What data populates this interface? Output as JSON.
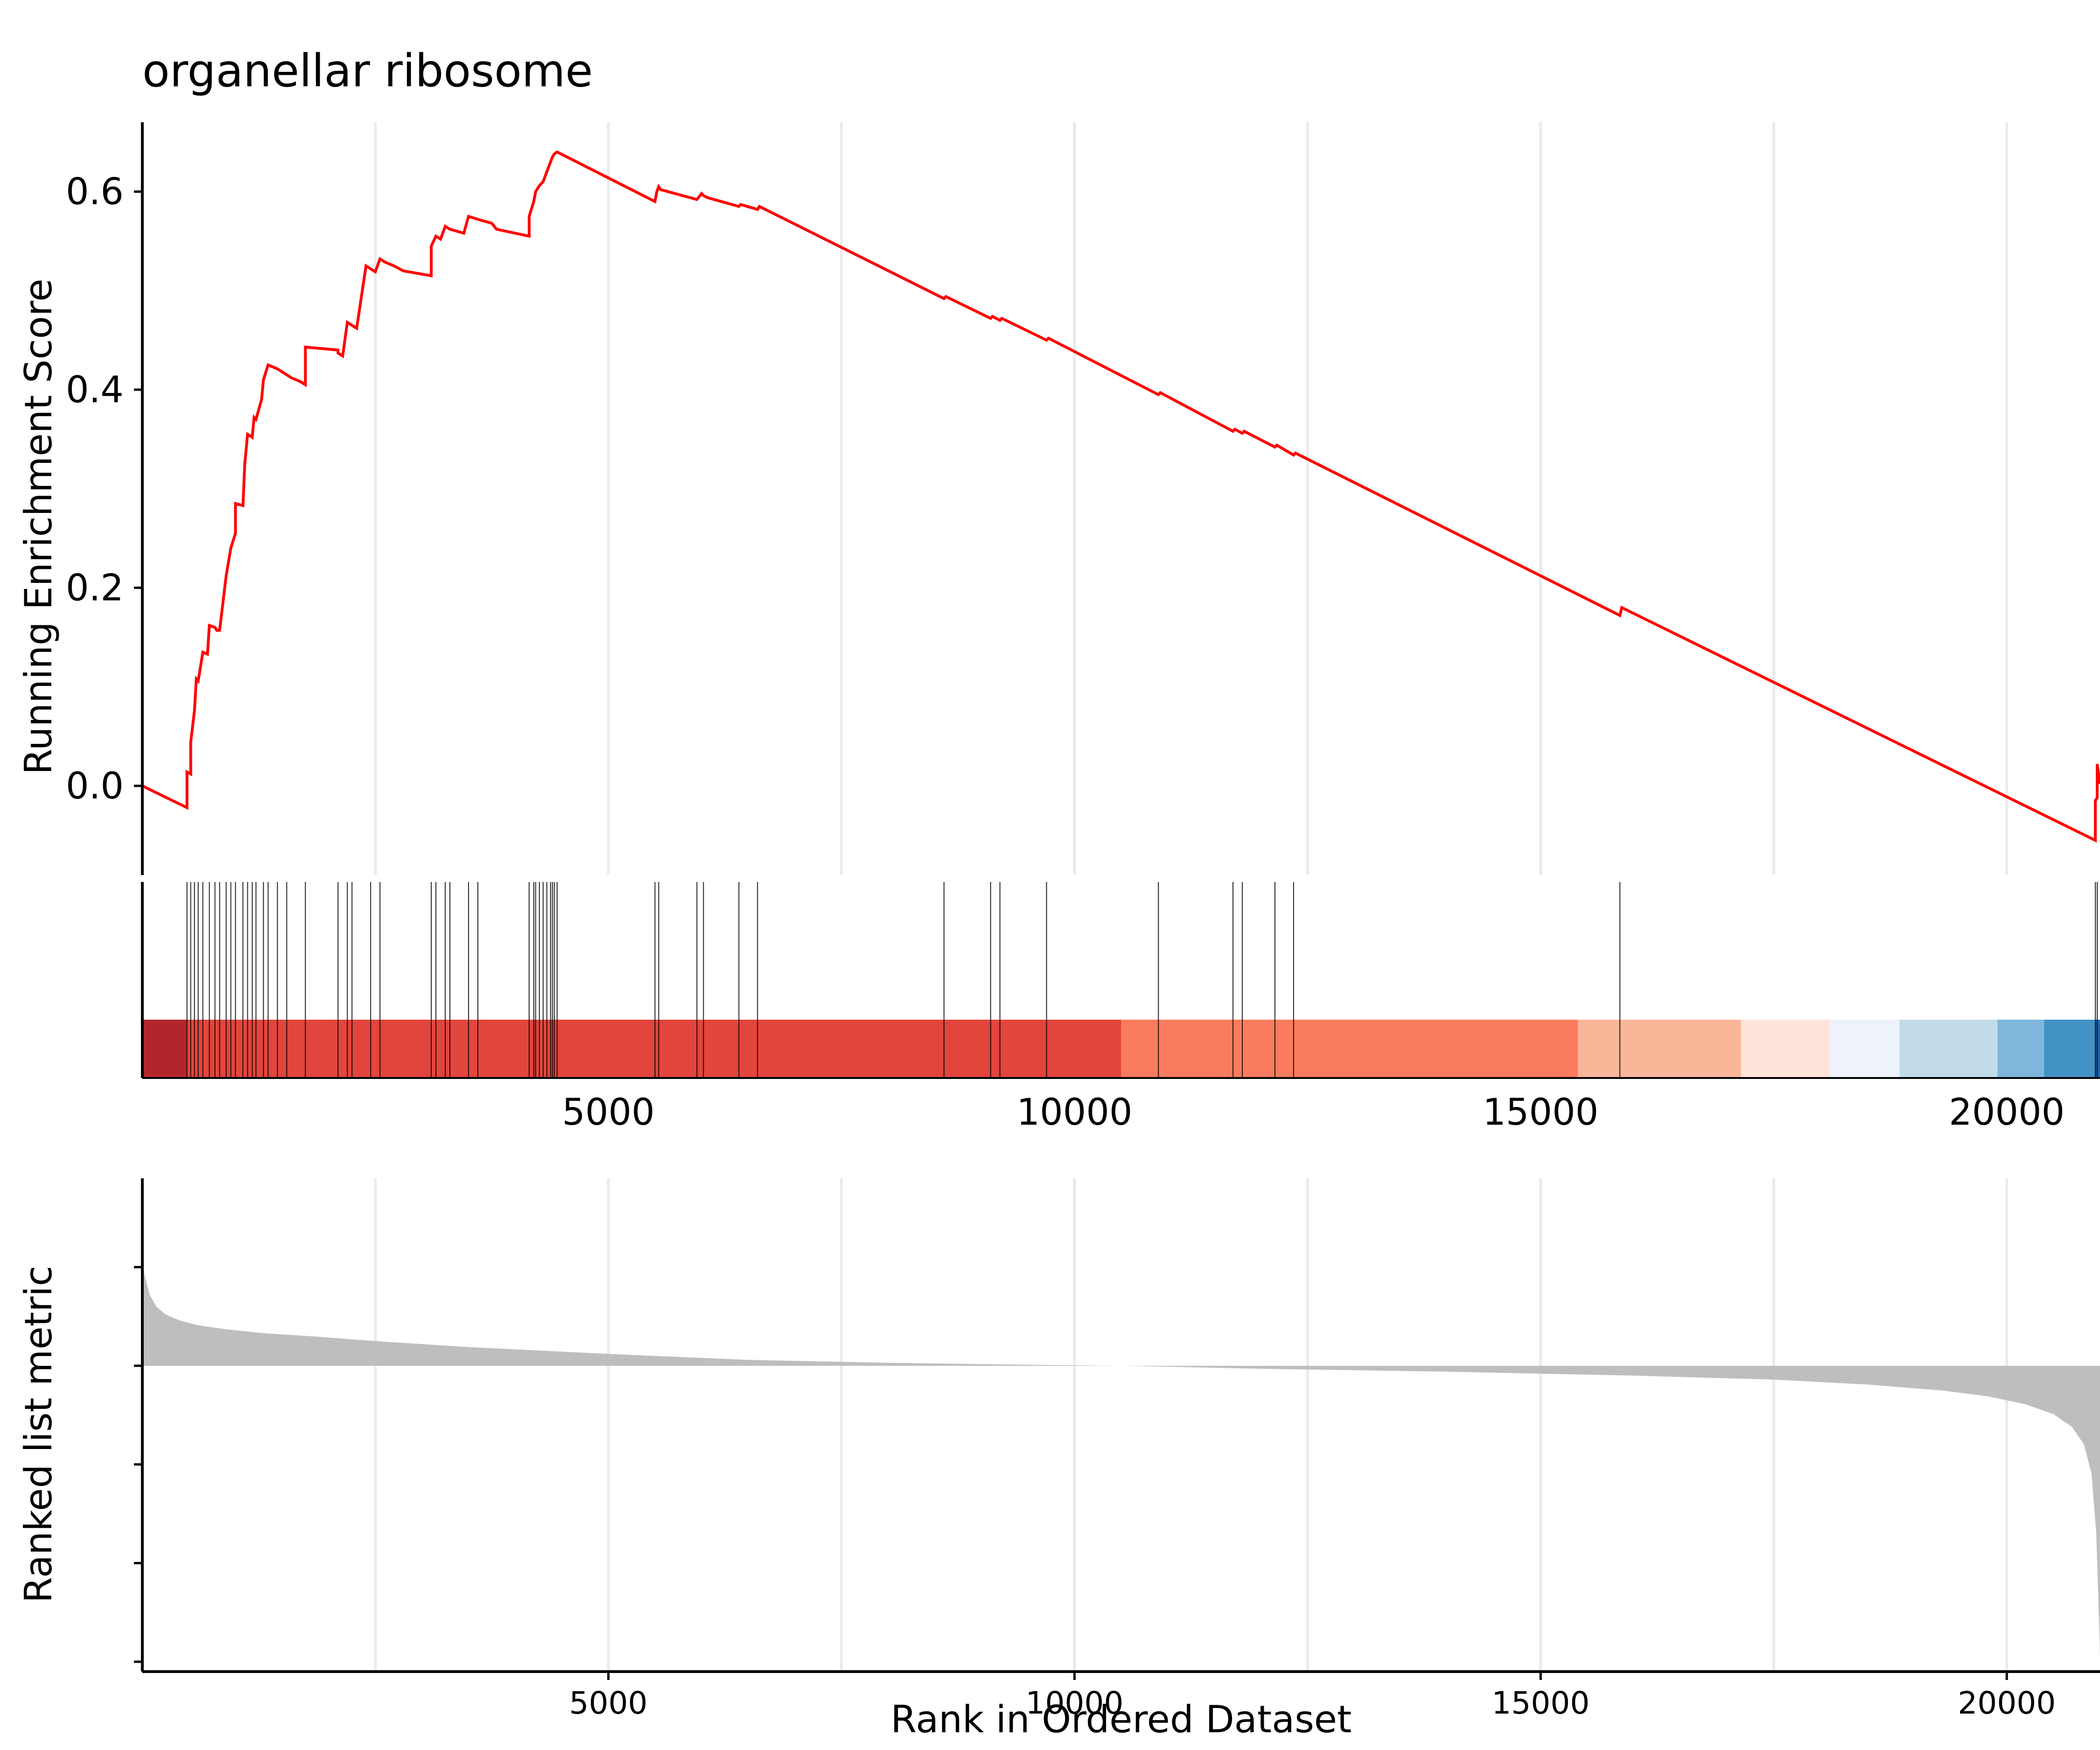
{
  "chart_data": {
    "type": "line",
    "title": "organellar ribosome",
    "n_genes": 21000,
    "xlim": [
      1,
      21000
    ],
    "es_panel": {
      "ylabel": "Running Enrichment Score",
      "ylim": [
        -0.09,
        0.67
      ],
      "yticks": [
        0.0,
        0.2,
        0.4,
        0.6
      ],
      "ytick_labels": [
        "0.0",
        "0.2",
        "0.4",
        "0.6"
      ],
      "line_color": "#ff0000",
      "series": [
        {
          "x": [
            1,
            480,
            480,
            520,
            520,
            560,
            580,
            600,
            600,
            650,
            700,
            720,
            780,
            800,
            830,
            900,
            950,
            1000,
            1000,
            1080,
            1100,
            1130,
            1180,
            1200,
            1220,
            1280,
            1300,
            1350,
            1400,
            1450,
            1500,
            1550,
            1600,
            1700,
            1750,
            1750,
            2100,
            2100,
            2150,
            2200,
            2250,
            2300,
            2400,
            2450,
            2500,
            2550,
            2600,
            2700,
            2800,
            3100,
            3100,
            3150,
            3200,
            3250,
            3300,
            3450,
            3500,
            3600,
            3750,
            3800,
            4150,
            4150,
            4200,
            4220,
            4260,
            4300,
            4340,
            4380,
            4400,
            4420,
            4450,
            5500,
            5520,
            5540,
            5560,
            5950,
            6000,
            6020,
            6060,
            6400,
            6420,
            6600,
            6620,
            8600,
            8620,
            9100,
            9120,
            9200,
            9220,
            9700,
            9720,
            10900,
            10920,
            11700,
            11720,
            11800,
            11820,
            12150,
            12170,
            12350,
            12370,
            15850,
            15870,
            20950,
            20950,
            20970,
            20970,
            21000
          ],
          "y": [
            0.0,
            -0.022,
            0.014,
            0.012,
            0.044,
            0.076,
            0.108,
            0.106,
            0.106,
            0.135,
            0.133,
            0.162,
            0.16,
            0.157,
            0.157,
            0.212,
            0.24,
            0.255,
            0.285,
            0.283,
            0.325,
            0.355,
            0.352,
            0.372,
            0.37,
            0.39,
            0.41,
            0.425,
            0.423,
            0.421,
            0.418,
            0.415,
            0.412,
            0.408,
            0.405,
            0.443,
            0.44,
            0.437,
            0.434,
            0.468,
            0.465,
            0.462,
            0.525,
            0.522,
            0.519,
            0.532,
            0.529,
            0.525,
            0.52,
            0.515,
            0.545,
            0.555,
            0.552,
            0.565,
            0.562,
            0.558,
            0.575,
            0.572,
            0.568,
            0.562,
            0.555,
            0.575,
            0.59,
            0.6,
            0.606,
            0.61,
            0.62,
            0.63,
            0.635,
            0.638,
            0.64,
            0.59,
            0.6,
            0.605,
            0.602,
            0.592,
            0.598,
            0.596,
            0.594,
            0.585,
            0.587,
            0.582,
            0.585,
            0.492,
            0.494,
            0.472,
            0.474,
            0.47,
            0.472,
            0.45,
            0.452,
            0.395,
            0.397,
            0.358,
            0.36,
            0.356,
            0.358,
            0.342,
            0.344,
            0.334,
            0.336,
            0.172,
            0.18,
            -0.055,
            -0.015,
            -0.012,
            0.022,
            0.002
          ]
        }
      ]
    },
    "hit_panel": {
      "hits": [
        480,
        520,
        560,
        600,
        650,
        720,
        780,
        830,
        900,
        950,
        1000,
        1080,
        1130,
        1180,
        1220,
        1300,
        1350,
        1450,
        1550,
        1750,
        2100,
        2200,
        2250,
        2450,
        2550,
        3100,
        3150,
        3250,
        3300,
        3500,
        3600,
        4150,
        4200,
        4220,
        4260,
        4300,
        4340,
        4380,
        4400,
        4420,
        4450,
        5500,
        5540,
        5950,
        6020,
        6400,
        6600,
        8600,
        9100,
        9200,
        9700,
        10900,
        11700,
        11800,
        12150,
        12350,
        15850,
        20950,
        20970
      ],
      "color_bands": [
        {
          "from": 1,
          "to": 480,
          "color": "#b2262b"
        },
        {
          "from": 480,
          "to": 10500,
          "color": "#e2453c"
        },
        {
          "from": 10500,
          "to": 15400,
          "color": "#fb7b5e"
        },
        {
          "from": 15400,
          "to": 17150,
          "color": "#fbb69a"
        },
        {
          "from": 17150,
          "to": 18100,
          "color": "#fee4da"
        },
        {
          "from": 18100,
          "to": 18850,
          "color": "#eef3fb"
        },
        {
          "from": 18850,
          "to": 19900,
          "color": "#c2dbe9"
        },
        {
          "from": 19900,
          "to": 20400,
          "color": "#7fb6dc"
        },
        {
          "from": 20400,
          "to": 20950,
          "color": "#4292c6"
        },
        {
          "from": 20950,
          "to": 21000,
          "color": "#2166ac"
        }
      ],
      "xticks": [
        5000,
        10000,
        15000,
        20000
      ],
      "xtick_labels": [
        "5000",
        "10000",
        "15000",
        "20000"
      ]
    },
    "metric_panel": {
      "ylabel": "Ranked list metric",
      "xlabel": "Rank in Ordered Dataset",
      "ylim": [
        -3.1,
        1.9
      ],
      "yticks": [
        -3,
        -2,
        -1,
        0,
        1
      ],
      "xticks": [
        5000,
        10000,
        15000,
        20000
      ],
      "xtick_labels": [
        "5000",
        "10000",
        "15000",
        "20000"
      ],
      "fill_color": "#bebebe",
      "profile": {
        "x": [
          1,
          30,
          80,
          150,
          250,
          400,
          600,
          900,
          1300,
          1800,
          2500,
          3500,
          5000,
          6500,
          8000,
          9500,
          10500,
          12000,
          14000,
          16000,
          17500,
          18500,
          19300,
          19800,
          20200,
          20500,
          20700,
          20830,
          20910,
          20960,
          20990,
          21000
        ],
        "y": [
          1.05,
          0.9,
          0.72,
          0.6,
          0.52,
          0.46,
          0.41,
          0.37,
          0.33,
          0.3,
          0.25,
          0.19,
          0.12,
          0.06,
          0.03,
          0.01,
          0.0,
          -0.03,
          -0.06,
          -0.1,
          -0.14,
          -0.19,
          -0.25,
          -0.31,
          -0.39,
          -0.49,
          -0.62,
          -0.8,
          -1.1,
          -1.7,
          -2.6,
          -2.95
        ]
      }
    }
  }
}
